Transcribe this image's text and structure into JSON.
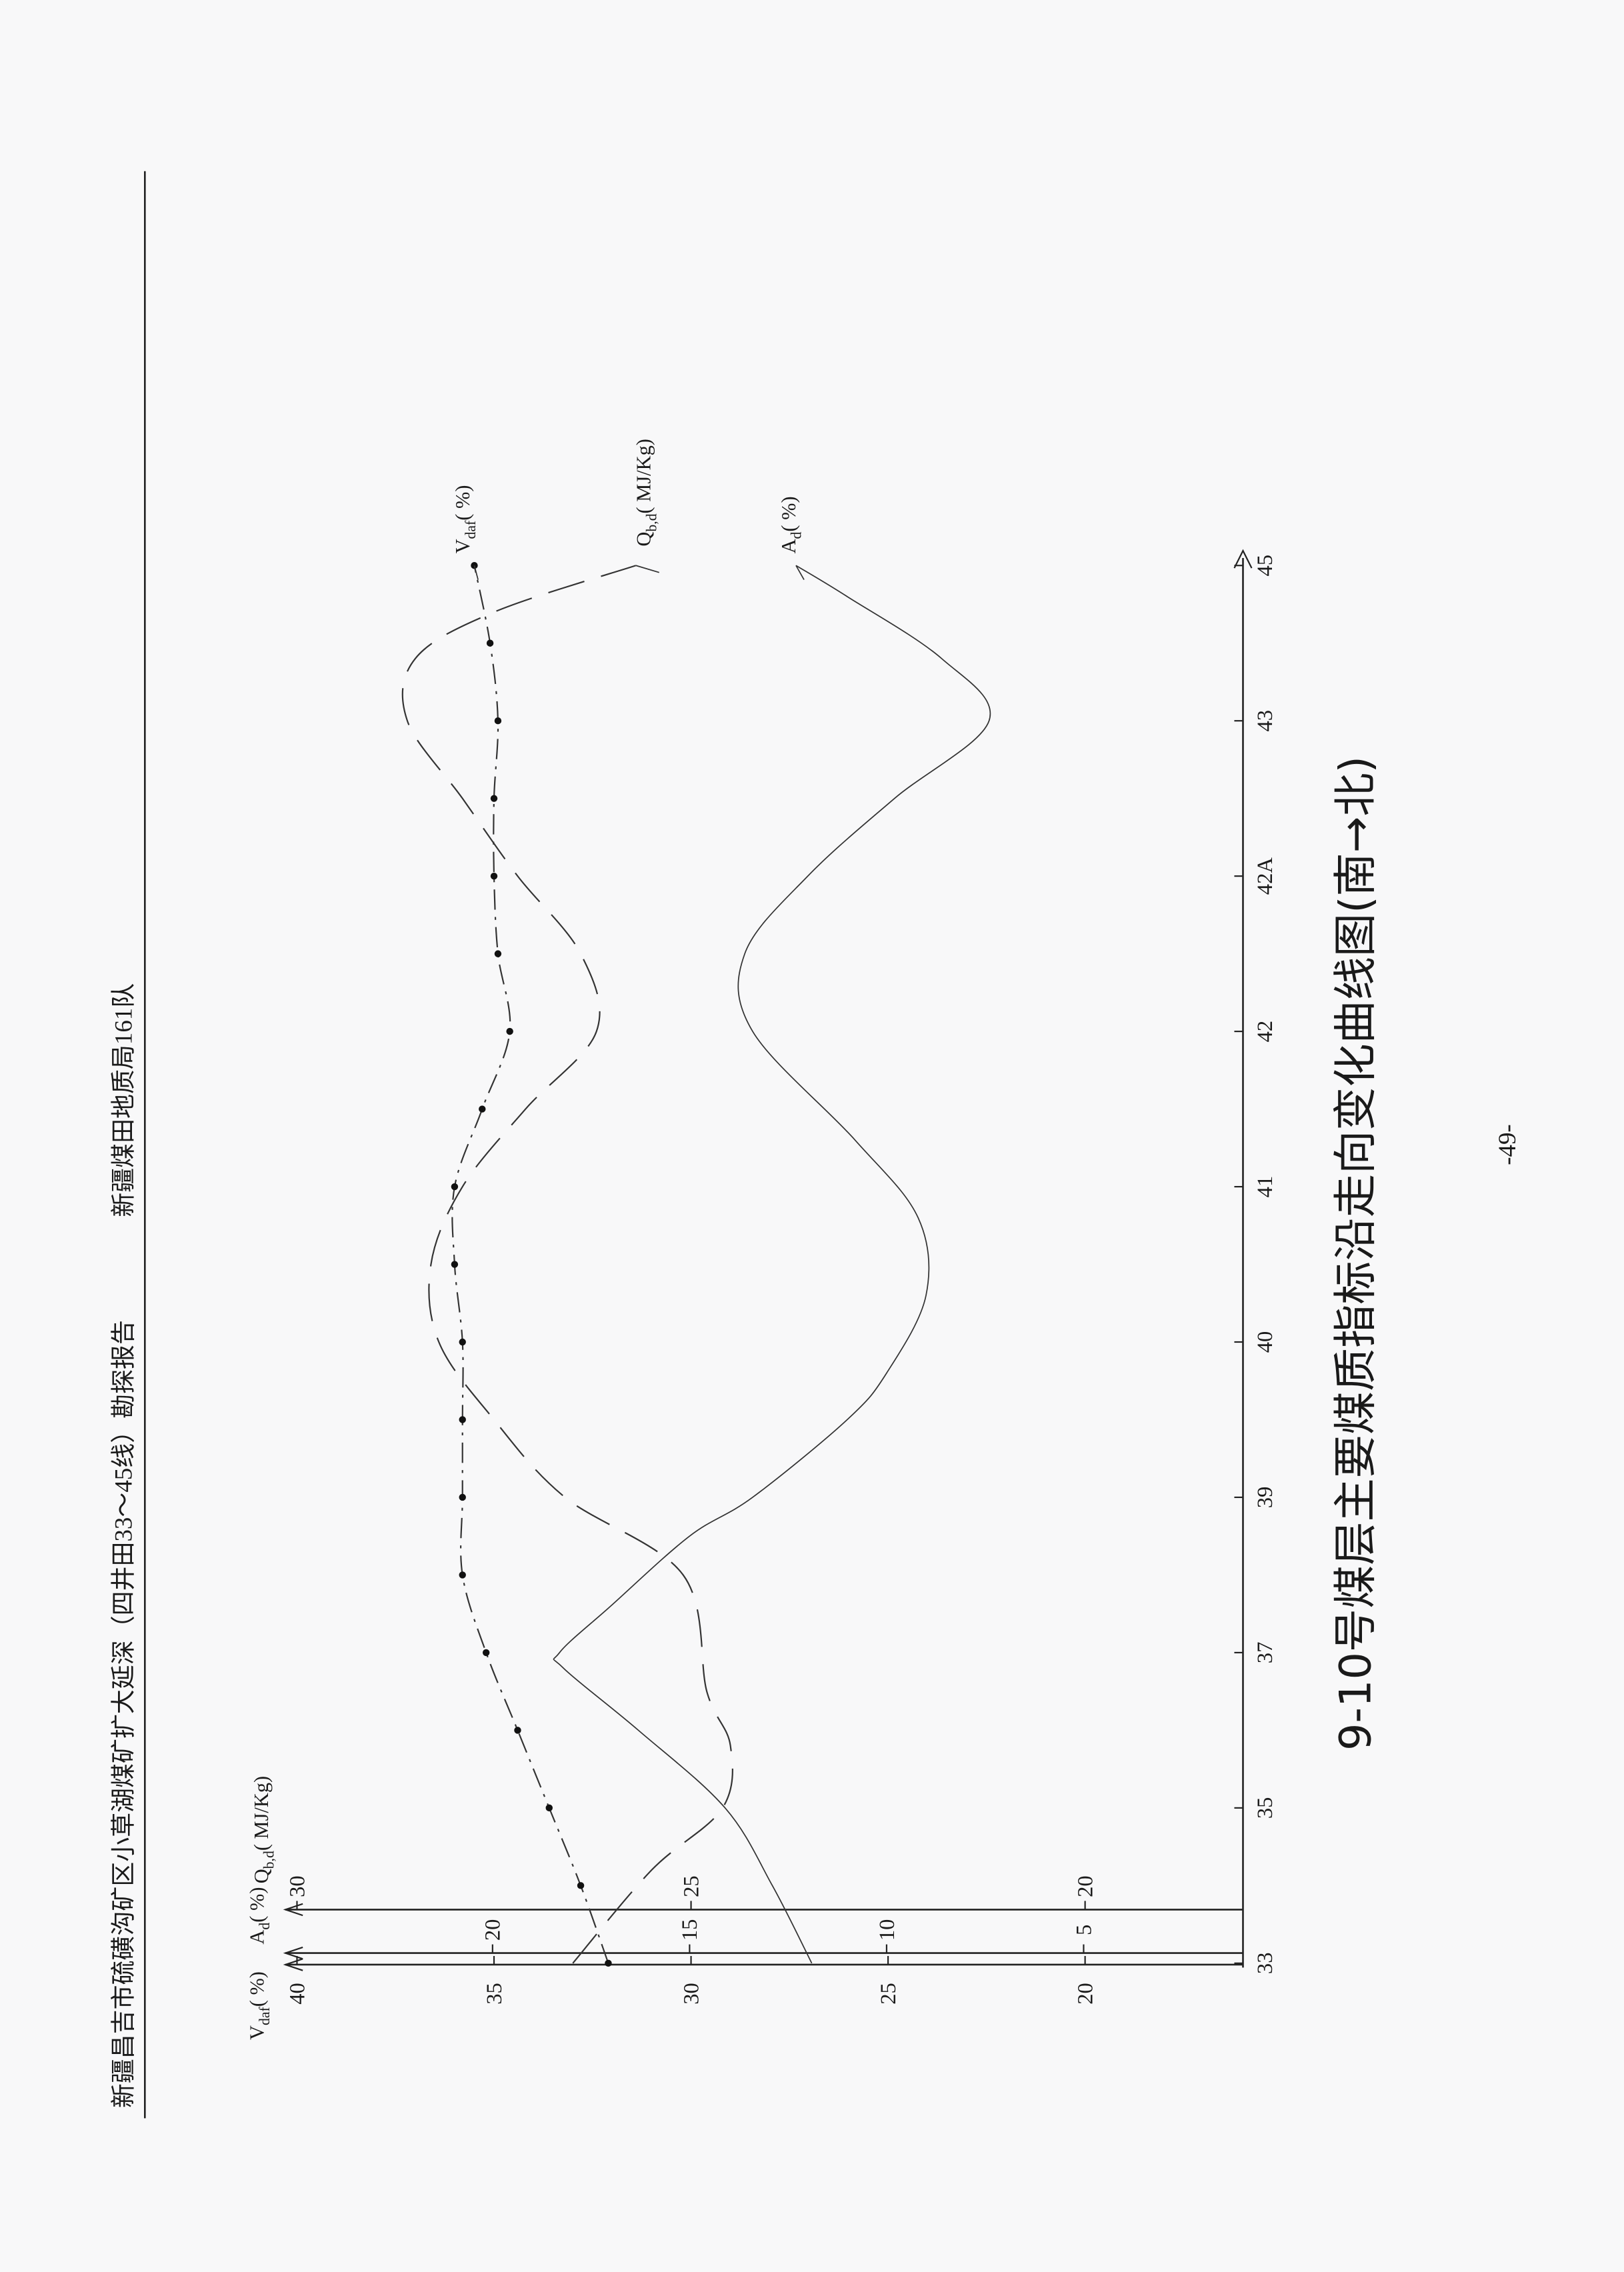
{
  "header": {
    "report_title": "新疆昌吉市硫磺沟矿区小草湖煤矿扩大延深（四井田33～45线）勘探报告",
    "organization": "新疆煤田地质局161队"
  },
  "page_number": "-49-",
  "chart_data": {
    "type": "line",
    "title": "9-10号煤层主要煤质指标沿走向变化曲线图(南→北)",
    "orientation": "rotated 90° counter-clockwise; exploration lines run along the page vertically",
    "categories": [
      "33",
      "35",
      "37",
      "39",
      "40",
      "41",
      "42",
      "42A",
      "43",
      "45"
    ],
    "axes": {
      "vdaf": {
        "label_main": "V",
        "label_sub": "daf",
        "label_unit": "( %)",
        "ticks": [
          "40",
          "35",
          "30",
          "25",
          "20"
        ],
        "range": [
          16,
          40
        ]
      },
      "ad": {
        "label_main": "A",
        "label_sub": "d",
        "label_unit": "( %)",
        "ticks": [
          "20",
          "15",
          "10",
          "5"
        ],
        "range": [
          1,
          25
        ]
      },
      "qbd": {
        "label_main": "Q",
        "label_sub": "b,d",
        "label_unit": "( MJ/Kg)",
        "ticks": [
          "30",
          "25",
          "20"
        ],
        "range": [
          18,
          30
        ]
      }
    },
    "grid": false,
    "series": [
      {
        "name": "Vdaf(%)",
        "label_main": "V",
        "label_sub": "daf",
        "label_unit": "( %)",
        "style": "dash-dot with markers",
        "x": [
          0,
          0.5,
          1,
          1.5,
          2,
          2.5,
          3,
          3.5,
          4,
          4.5,
          5,
          5.5,
          6,
          6.5,
          7,
          7.5,
          8,
          8.5,
          9
        ],
        "values": [
          32.1,
          32.8,
          33.6,
          34.4,
          35.2,
          35.8,
          35.8,
          35.8,
          35.8,
          36.0,
          36.0,
          35.3,
          34.6,
          34.9,
          35.0,
          35.0,
          34.9,
          35.1,
          35.5
        ]
      },
      {
        "name": "Qb,d(MJ/Kg)",
        "label_main": "Q",
        "label_sub": "b,d",
        "label_unit": "( MJ/Kg)",
        "style": "long dash",
        "x": [
          0,
          0.6,
          1,
          1.4,
          1.75,
          2.5,
          3,
          3.5,
          4,
          4.5,
          5,
          5.5,
          6,
          6.5,
          7,
          7.5,
          8,
          8.4,
          8.7,
          9
        ],
        "values": [
          26.5,
          25.5,
          24.6,
          24.5,
          24.8,
          25.1,
          26.6,
          27.5,
          28.2,
          28.3,
          27.9,
          27.1,
          26.2,
          26.4,
          27.2,
          27.9,
          28.6,
          28.5,
          27.5,
          25.7
        ]
      },
      {
        "name": "Ad(%)",
        "label_main": "A",
        "label_sub": "d",
        "label_unit": "( %)",
        "style": "solid thin",
        "x": [
          0,
          0.5,
          1,
          1.5,
          1.9,
          2,
          2.3,
          2.75,
          3,
          3.5,
          3.8,
          4.3,
          4.8,
          5.3,
          6,
          6.5,
          7,
          7.5,
          8,
          8.4,
          8.8,
          9
        ],
        "values": [
          11.9,
          12.9,
          14.1,
          16.3,
          18.2,
          18.3,
          17.0,
          15.0,
          13.4,
          11.0,
          10.0,
          9.0,
          9.2,
          10.8,
          13.4,
          13.6,
          12.0,
          9.8,
          7.4,
          8.6,
          11.0,
          12.3
        ]
      }
    ]
  }
}
